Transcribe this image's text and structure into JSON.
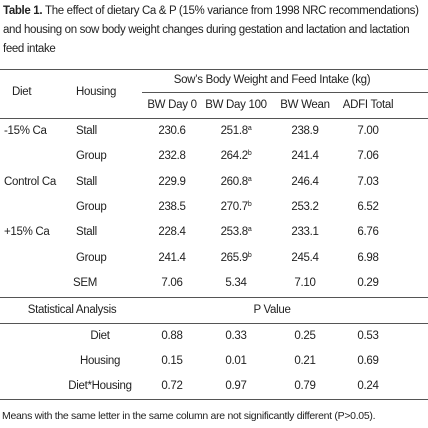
{
  "caption": {
    "label": "Table 1.",
    "text": "The effect of dietary Ca & P (15% variance from 1998 NRC recommendations) and housing on sow body weight changes during gestation and lactation and lactation feed intake"
  },
  "header": {
    "diet": "Diet",
    "housing": "Housing",
    "group": "Sow’s Body Weight and Feed Intake (kg)",
    "columns": [
      "BW Day 0",
      "BW Day 100",
      "BW Wean",
      "ADFI Total"
    ]
  },
  "groups": [
    {
      "diet": "-15% Ca",
      "rows": [
        {
          "housing": "Stall",
          "cells": [
            {
              "text": "230.6"
            },
            {
              "text": "251.8",
              "sup": "a"
            },
            {
              "text": "238.9"
            },
            {
              "text": "7.00"
            }
          ]
        },
        {
          "housing": "Group",
          "cells": [
            {
              "text": "232.8"
            },
            {
              "text": "264.2",
              "sup": "b"
            },
            {
              "text": "241.4"
            },
            {
              "text": "7.06"
            }
          ]
        }
      ]
    },
    {
      "diet": "Control Ca",
      "rows": [
        {
          "housing": "Stall",
          "cells": [
            {
              "text": "229.9"
            },
            {
              "text": "260.8",
              "sup": "a"
            },
            {
              "text": "246.4"
            },
            {
              "text": "7.03"
            }
          ]
        },
        {
          "housing": "Group",
          "cells": [
            {
              "text": "238.5"
            },
            {
              "text": "270.7",
              "sup": "b"
            },
            {
              "text": "253.2"
            },
            {
              "text": "6.52"
            }
          ]
        }
      ]
    },
    {
      "diet": "+15% Ca",
      "rows": [
        {
          "housing": "Stall",
          "cells": [
            {
              "text": "228.4"
            },
            {
              "text": "253.8",
              "sup": "a"
            },
            {
              "text": "233.1"
            },
            {
              "text": "6.76"
            }
          ]
        },
        {
          "housing": "Group",
          "cells": [
            {
              "text": "241.4"
            },
            {
              "text": "265.9",
              "sup": "b"
            },
            {
              "text": "245.4"
            },
            {
              "text": "6.98"
            }
          ]
        }
      ]
    }
  ],
  "sem": {
    "label": "SEM",
    "values": [
      "7.06",
      "5.34",
      "7.10",
      "0.29"
    ]
  },
  "stats": {
    "title": "Statistical Analysis",
    "subtitle": "P Value",
    "rows": [
      {
        "label": "Diet",
        "values": [
          "0.88",
          "0.33",
          "0.25",
          "0.53"
        ]
      },
      {
        "label": "Housing",
        "values": [
          "0.15",
          "0.01",
          "0.21",
          "0.69"
        ]
      },
      {
        "label": "Diet*Housing",
        "values": [
          "0.72",
          "0.97",
          "0.79",
          "0.24"
        ]
      }
    ]
  },
  "footnote": "Means with the same letter in the same column are not significantly different  (P>0.05)."
}
